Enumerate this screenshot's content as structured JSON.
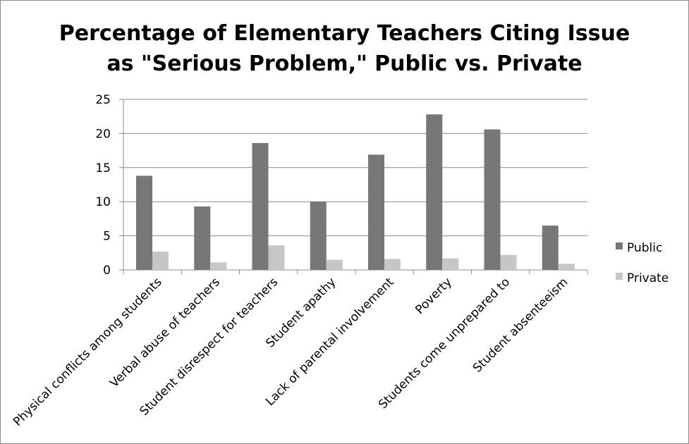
{
  "chart_data": {
    "type": "bar",
    "title": "Percentage of Elementary Teachers Citing Issue as \"Serious Problem,\" Public vs. Private",
    "title_lines": [
      "Percentage of Elementary Teachers Citing Issue",
      "as \"Serious Problem,\" Public vs. Private"
    ],
    "xlabel": "",
    "ylabel": "",
    "ylim": [
      0,
      25
    ],
    "yticks": [
      0,
      5,
      10,
      15,
      20,
      25
    ],
    "grid": true,
    "legend_position": "right",
    "categories": [
      "Physical conflicts among students",
      "Verbal abuse of teachers",
      "Student disrespect for teachers",
      "Student apathy",
      "Lack of parental involvement",
      "Poverty",
      "Students come unprepared to",
      "Student absenteeism"
    ],
    "series": [
      {
        "name": "Public",
        "color": "#777777",
        "values": [
          13.8,
          9.3,
          18.6,
          10.0,
          16.9,
          22.8,
          20.6,
          6.5
        ]
      },
      {
        "name": "Private",
        "color": "#c6c6c6",
        "values": [
          2.7,
          1.1,
          3.6,
          1.5,
          1.6,
          1.7,
          2.2,
          0.9
        ]
      }
    ]
  }
}
